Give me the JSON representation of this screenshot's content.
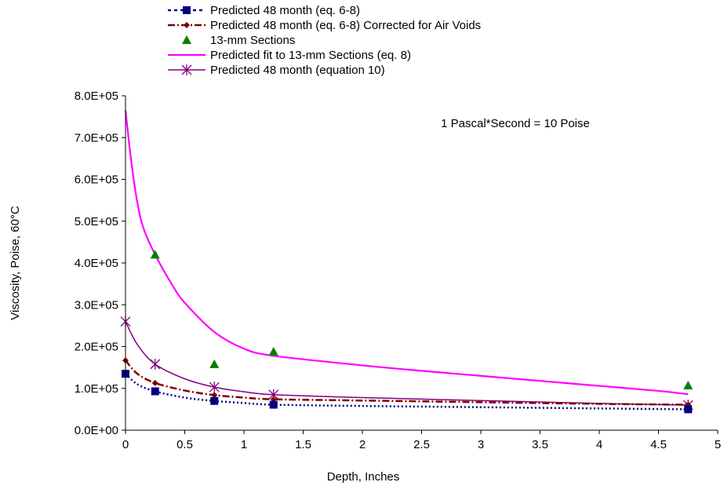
{
  "chart_data": {
    "type": "line",
    "title": "",
    "xlabel": "Depth, Inches",
    "ylabel": "Viscosity, Poise, 60°C",
    "xlim": [
      0,
      5
    ],
    "ylim": [
      0,
      800000
    ],
    "x_ticks": [
      "0",
      "0.5",
      "1",
      "1.5",
      "2",
      "2.5",
      "3",
      "3.5",
      "4",
      "4.5",
      "5"
    ],
    "y_ticks": [
      "0.0E+00",
      "1.0E+05",
      "2.0E+05",
      "3.0E+05",
      "4.0E+05",
      "5.0E+05",
      "6.0E+05",
      "7.0E+05",
      "8.0E+05"
    ],
    "grid": false,
    "legend_position": "top",
    "annotation": "1 Pascal*Second = 10 Poise",
    "series": [
      {
        "name": "Predicted 48 month (eq. 6-8)",
        "color": "#000080",
        "line_style": "dotted",
        "marker": "square",
        "x": [
          0,
          0.25,
          0.75,
          1.25,
          4.75
        ],
        "y": [
          135000,
          93000,
          70000,
          61000,
          50000
        ],
        "curve": [
          [
            0,
            135000
          ],
          [
            0.1,
            110000
          ],
          [
            0.25,
            93000
          ],
          [
            0.5,
            78000
          ],
          [
            0.75,
            70000
          ],
          [
            1,
            65000
          ],
          [
            1.25,
            61000
          ],
          [
            2,
            58000
          ],
          [
            3,
            55000
          ],
          [
            4,
            52000
          ],
          [
            4.75,
            50000
          ]
        ]
      },
      {
        "name": "Predicted 48 month (eq. 6-8) Corrected for Air Voids",
        "color": "#800000",
        "line_style": "dashdot",
        "marker": "diamond",
        "x": [
          0,
          0.25,
          0.75,
          1.25,
          4.75
        ],
        "y": [
          167000,
          113000,
          84000,
          74000,
          61000
        ],
        "curve": [
          [
            0,
            167000
          ],
          [
            0.1,
            135000
          ],
          [
            0.25,
            113000
          ],
          [
            0.5,
            95000
          ],
          [
            0.75,
            84000
          ],
          [
            1,
            78000
          ],
          [
            1.25,
            74000
          ],
          [
            2,
            71000
          ],
          [
            3,
            67000
          ],
          [
            4,
            63000
          ],
          [
            4.75,
            61000
          ]
        ]
      },
      {
        "name": "13-mm Sections",
        "color": "#008000",
        "line_style": "none",
        "marker": "triangle",
        "x": [
          0.25,
          0.75,
          1.25,
          4.75
        ],
        "y": [
          420000,
          158000,
          188000,
          107000
        ]
      },
      {
        "name": "Predicted fit to 13-mm Sections (eq. 8)",
        "color": "#FF00FF",
        "line_style": "solid",
        "marker": "none",
        "curve": [
          [
            0,
            765000
          ],
          [
            0.05,
            640000
          ],
          [
            0.1,
            545000
          ],
          [
            0.15,
            485000
          ],
          [
            0.25,
            420000
          ],
          [
            0.4,
            345000
          ],
          [
            0.5,
            305000
          ],
          [
            0.75,
            235000
          ],
          [
            1,
            195000
          ],
          [
            1.25,
            178000
          ],
          [
            2,
            155000
          ],
          [
            2.5,
            142000
          ],
          [
            3,
            130000
          ],
          [
            3.5,
            118000
          ],
          [
            4,
            106000
          ],
          [
            4.5,
            94000
          ],
          [
            4.75,
            86000
          ]
        ]
      },
      {
        "name": "Predicted 48 month (equation 10)",
        "color": "#800080",
        "line_style": "solid",
        "marker": "asterisk",
        "x": [
          0,
          0.25,
          0.75,
          1.25,
          4.75
        ],
        "y": [
          260000,
          158000,
          103000,
          85000,
          60000
        ],
        "curve": [
          [
            0,
            260000
          ],
          [
            0.1,
            205000
          ],
          [
            0.25,
            158000
          ],
          [
            0.5,
            123000
          ],
          [
            0.75,
            103000
          ],
          [
            1,
            92000
          ],
          [
            1.25,
            85000
          ],
          [
            2,
            78000
          ],
          [
            3,
            71000
          ],
          [
            4,
            64000
          ],
          [
            4.75,
            60000
          ]
        ]
      }
    ]
  }
}
